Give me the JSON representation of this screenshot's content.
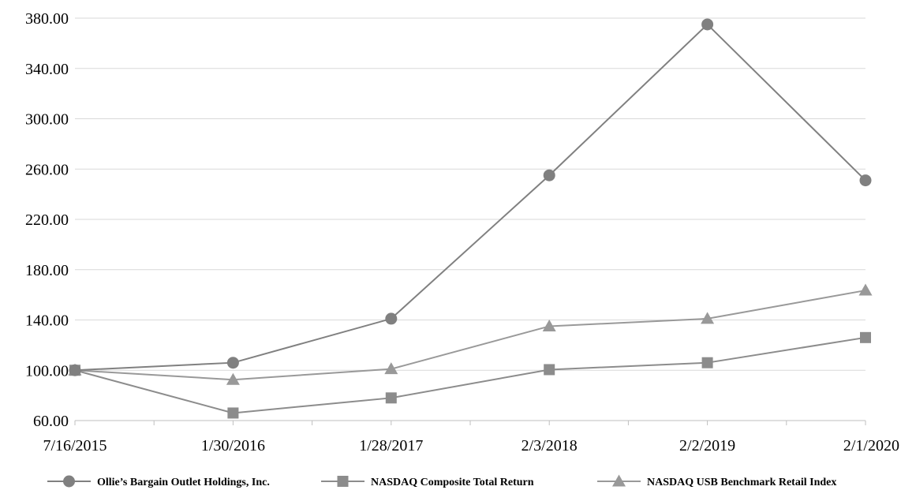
{
  "chart_data": {
    "type": "line",
    "title": "",
    "xlabel": "",
    "ylabel": "",
    "categories": [
      "7/16/2015",
      "1/30/2016",
      "1/28/2017",
      "2/3/2018",
      "2/2/2019",
      "2/1/2020"
    ],
    "ylim": [
      60,
      380
    ],
    "yticks": [
      60,
      100,
      140,
      180,
      220,
      260,
      300,
      340,
      380
    ],
    "ytick_labels": [
      "60.00",
      "100.00",
      "140.00",
      "180.00",
      "220.00",
      "260.00",
      "300.00",
      "340.00",
      "380.00"
    ],
    "grid": "horizontal",
    "legend_position": "bottom",
    "series": [
      {
        "name": "Ollie’s Bargain Outlet Holdings, Inc.",
        "marker": "circle",
        "color": "#808080",
        "values": [
          100.0,
          106.0,
          141.0,
          255.0,
          375.0,
          251.0
        ]
      },
      {
        "name": "NASDAQ Composite Total Return",
        "marker": "square",
        "color": "#8c8c8c",
        "values": [
          100.0,
          66.0,
          78.0,
          100.5,
          106.0,
          126.0
        ]
      },
      {
        "name": "NASDAQ USB Benchmark Retail Index",
        "marker": "triangle",
        "color": "#999999",
        "values": [
          100.0,
          92.5,
          101.0,
          135.0,
          141.0,
          163.5
        ]
      }
    ]
  }
}
